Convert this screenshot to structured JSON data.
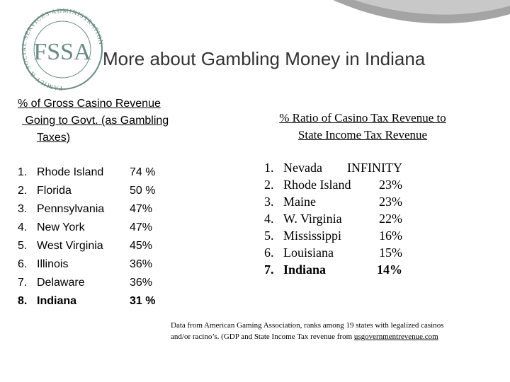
{
  "logo": {
    "letters": "FSSA",
    "ring": "FAMILY & SOCIAL SERVICES ADMINISTRATION"
  },
  "title": "More about Gambling Money in Indiana",
  "left": {
    "heading": [
      "% of Gross Casino Revenue",
      " Going to Govt. (as Gambling",
      "Taxes)"
    ],
    "items": [
      {
        "rank": "1.",
        "name": "Rhode Island",
        "value": "74 %"
      },
      {
        "rank": "2.",
        "name": "Florida",
        "value": "50 %"
      },
      {
        "rank": "3.",
        "name": "Pennsylvania",
        "value": "47%"
      },
      {
        "rank": "4.",
        "name": "New York",
        "value": "47%"
      },
      {
        "rank": "5.",
        "name": "West Virginia",
        "value": "45%"
      },
      {
        "rank": "6.",
        "name": "Illinois",
        "value": "36%"
      },
      {
        "rank": "7.",
        "name": "Delaware",
        "value": "36%"
      },
      {
        "rank": "8.",
        "name": "Indiana",
        "value": "31 %",
        "bold": true
      }
    ]
  },
  "right": {
    "heading": [
      "% Ratio of Casino Tax Revenue to",
      "State Income Tax Revenue"
    ],
    "items": [
      {
        "rank": "1.",
        "name": "Nevada",
        "value": "INFINITY"
      },
      {
        "rank": "2.",
        "name": "Rhode Island",
        "value": "23%"
      },
      {
        "rank": "3.",
        "name": "Maine",
        "value": "23%"
      },
      {
        "rank": "4.",
        "name": "W. Virginia",
        "value": "22%"
      },
      {
        "rank": "5.",
        "name": "Mississippi",
        "value": "16%"
      },
      {
        "rank": "6.",
        "name": "Louisiana",
        "value": "15%"
      },
      {
        "rank": "7.",
        "name": "Indiana",
        "value": "14%",
        "bold": true
      }
    ]
  },
  "footnote": {
    "line1": "Data from American Gaming Association, ranks among 19 states with legalized casinos",
    "line2": "and/or racino’s. (GDP and State Income Tax revenue from ",
    "link": "usgovernmentrevenue.com"
  }
}
